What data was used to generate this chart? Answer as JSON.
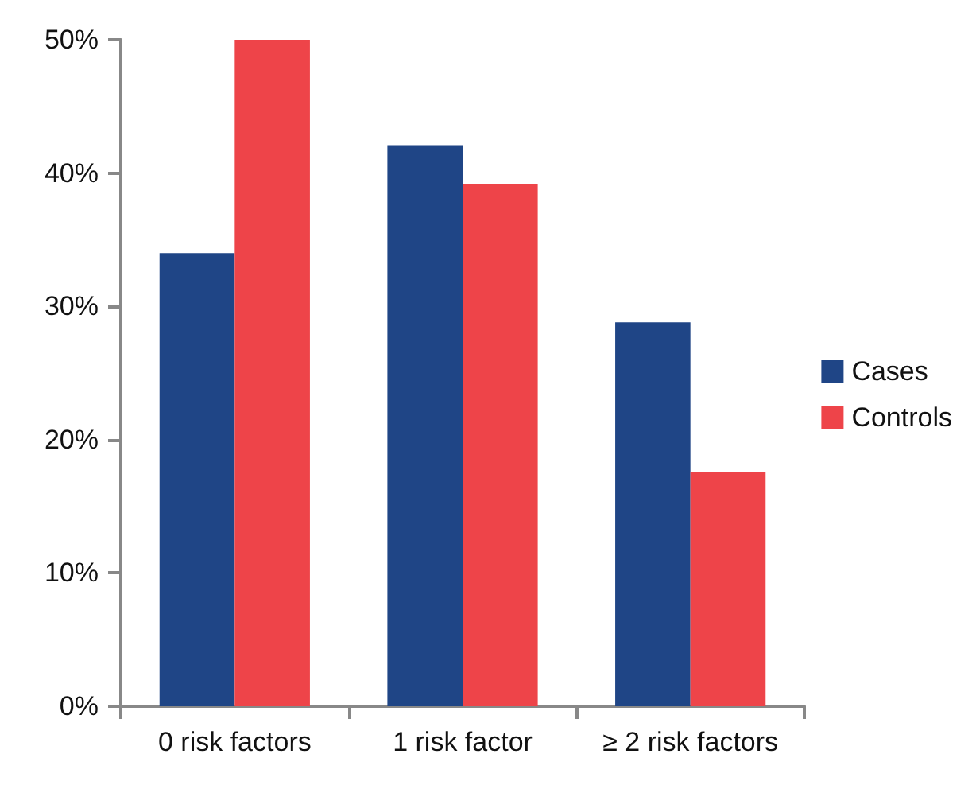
{
  "chart_data": {
    "type": "bar",
    "categories": [
      "0 risk factors",
      "1 risk factor",
      "≥ 2 risk factors"
    ],
    "series": [
      {
        "name": "Cases",
        "color": "#1f4586",
        "values": [
          34,
          42.1,
          28.8
        ]
      },
      {
        "name": "Controls",
        "color": "#ee4449",
        "values": [
          50,
          39.2,
          17.6
        ]
      }
    ],
    "ylim": [
      0,
      50
    ],
    "yticks": [
      {
        "value": 0,
        "label": "0%"
      },
      {
        "value": 10,
        "label": "10%"
      },
      {
        "value": 20,
        "label": "20%"
      },
      {
        "value": 30,
        "label": "30%"
      },
      {
        "value": 40,
        "label": "40%"
      },
      {
        "value": 50,
        "label": "50%"
      }
    ],
    "grid": false,
    "legend": "right"
  }
}
